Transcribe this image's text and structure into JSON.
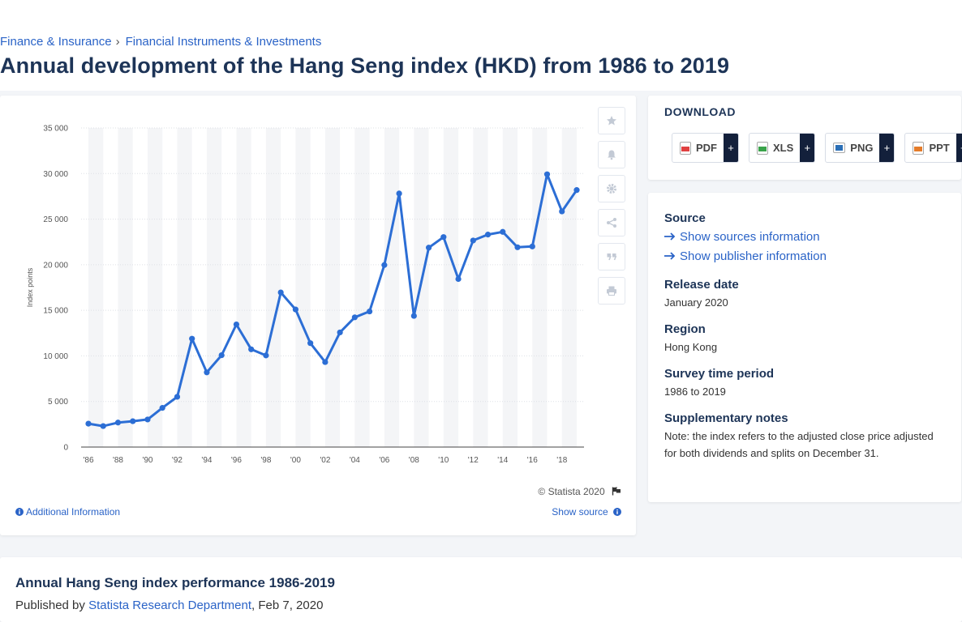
{
  "breadcrumb": {
    "item1": "Finance & Insurance",
    "separator": "›",
    "item2": "Financial Instruments & Investments"
  },
  "page_title": "Annual development of the Hang Seng index (HKD) from 1986 to 2019",
  "chart": {
    "copyright": "© Statista 2020",
    "additional_information": "Additional Information",
    "show_source": "Show source",
    "tools": [
      "star-icon",
      "bell-icon",
      "gear-icon",
      "share-icon",
      "quote-icon",
      "print-icon"
    ]
  },
  "chart_data": {
    "type": "line",
    "title": "",
    "xlabel": "",
    "ylabel": "Index points",
    "x": [
      1986,
      1987,
      1988,
      1989,
      1990,
      1991,
      1992,
      1993,
      1994,
      1995,
      1996,
      1997,
      1998,
      1999,
      2000,
      2001,
      2002,
      2003,
      2004,
      2005,
      2006,
      2007,
      2008,
      2009,
      2010,
      2011,
      2012,
      2013,
      2014,
      2015,
      2016,
      2017,
      2018,
      2019
    ],
    "x_tick_labels": [
      "'86",
      "'88",
      "'90",
      "'92",
      "'94",
      "'96",
      "'98",
      "'00",
      "'02",
      "'04",
      "'06",
      "'08",
      "'10",
      "'12",
      "'14",
      "'16",
      "'18"
    ],
    "x_tick_years": [
      1986,
      1988,
      1990,
      1992,
      1994,
      1996,
      1998,
      2000,
      2002,
      2004,
      2006,
      2008,
      2010,
      2012,
      2014,
      2016,
      2018
    ],
    "y_ticks": [
      0,
      5000,
      10000,
      15000,
      20000,
      25000,
      30000,
      35000
    ],
    "y_tick_labels": [
      "0",
      "5 000",
      "10 000",
      "15 000",
      "20 000",
      "25 000",
      "30 000",
      "35 000"
    ],
    "ylim": [
      0,
      35000
    ],
    "series": [
      {
        "values": [
          2568,
          2303,
          2687,
          2837,
          3025,
          4297,
          5512,
          11888,
          8191,
          10073,
          13451,
          10723,
          10049,
          16962,
          15096,
          11397,
          9321,
          12576,
          14230,
          14876,
          19965,
          27813,
          14387,
          21873,
          23035,
          18434,
          22657,
          23306,
          23605,
          21914,
          22001,
          29919,
          25846,
          28190
        ]
      }
    ],
    "line_color": "#2c6ed5",
    "grid": true,
    "legend": "none"
  },
  "download": {
    "title": "DOWNLOAD",
    "buttons": [
      {
        "label": "PDF",
        "plus": "+",
        "color": "#e04040"
      },
      {
        "label": "XLS",
        "plus": "+",
        "color": "#3aa34a"
      },
      {
        "label": "PNG",
        "plus": "+",
        "color": "#2b6fb6"
      },
      {
        "label": "PPT",
        "plus": "+",
        "color": "#e57c2a"
      }
    ]
  },
  "info": {
    "source_label": "Source",
    "show_sources": "Show sources information",
    "show_publisher": "Show publisher information",
    "release_date_label": "Release date",
    "release_date": "January 2020",
    "region_label": "Region",
    "region": "Hong Kong",
    "survey_period_label": "Survey time period",
    "survey_period": "1986 to 2019",
    "notes_label": "Supplementary notes",
    "notes": "Note: the index refers to the adjusted close price adjusted for both dividends and splits on December 31."
  },
  "bottom": {
    "title": "Annual Hang Seng index performance 1986-2019",
    "published_by": "Published by",
    "publisher": "Statista Research Department",
    "date": ", Feb 7, 2020"
  }
}
